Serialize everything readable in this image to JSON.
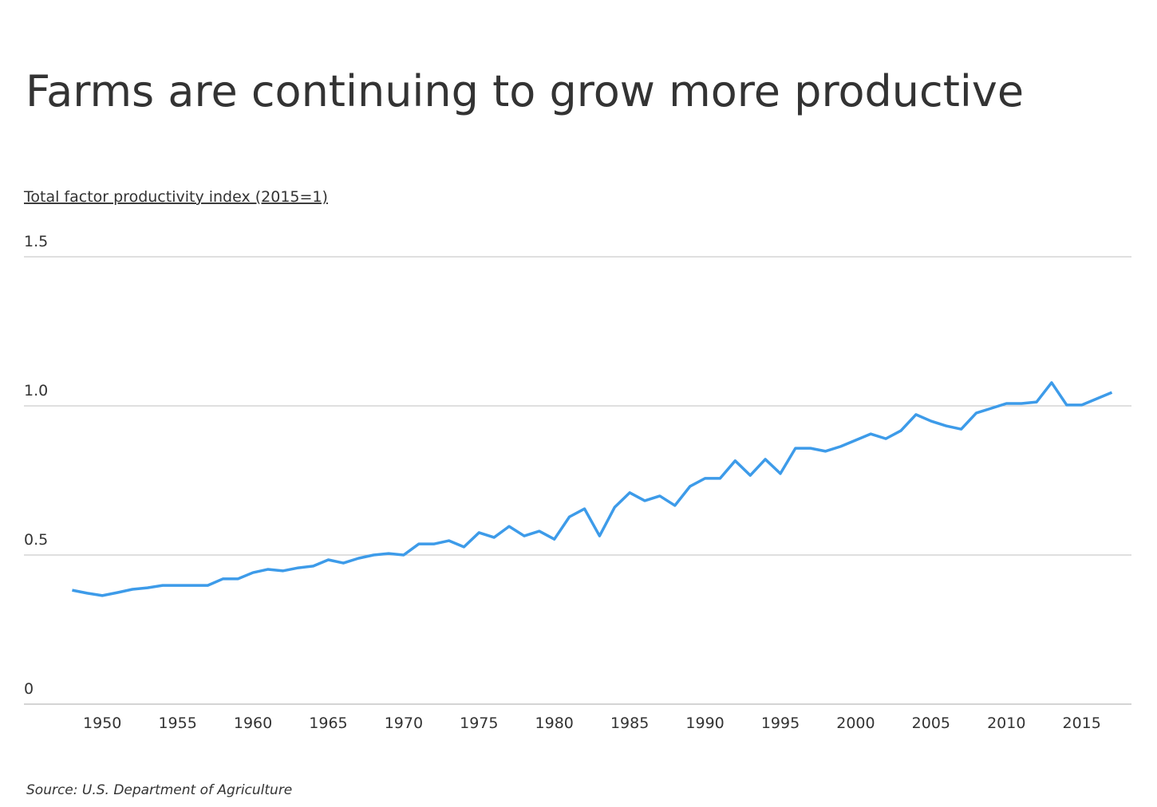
{
  "chart_data": {
    "type": "line",
    "title": "Farms are continuing to grow more productive",
    "y_axis_label": "Total factor productivity index (2015=1)",
    "source": "Source:  U.S. Department of Agriculture",
    "x": [
      1948,
      1949,
      1950,
      1951,
      1952,
      1953,
      1954,
      1955,
      1956,
      1957,
      1958,
      1959,
      1960,
      1961,
      1962,
      1963,
      1964,
      1965,
      1966,
      1967,
      1968,
      1969,
      1970,
      1971,
      1972,
      1973,
      1974,
      1975,
      1976,
      1977,
      1978,
      1979,
      1980,
      1981,
      1982,
      1983,
      1984,
      1985,
      1986,
      1987,
      1988,
      1989,
      1990,
      1991,
      1992,
      1993,
      1994,
      1995,
      1996,
      1997,
      1998,
      1999,
      2000,
      2001,
      2002,
      2003,
      2004,
      2005,
      2006,
      2007,
      2008,
      2009,
      2010,
      2011,
      2012,
      2013,
      2014,
      2015,
      2016,
      2017
    ],
    "series": [
      {
        "name": "Total factor productivity index",
        "color": "#3d9be9",
        "values": [
          0.382,
          0.372,
          0.364,
          0.374,
          0.385,
          0.39,
          0.398,
          0.398,
          0.398,
          0.398,
          0.42,
          0.42,
          0.441,
          0.452,
          0.447,
          0.457,
          0.463,
          0.484,
          0.473,
          0.489,
          0.5,
          0.505,
          0.5,
          0.537,
          0.537,
          0.548,
          0.527,
          0.575,
          0.559,
          0.596,
          0.564,
          0.58,
          0.553,
          0.628,
          0.655,
          0.564,
          0.66,
          0.709,
          0.682,
          0.698,
          0.666,
          0.73,
          0.757,
          0.757,
          0.816,
          0.767,
          0.821,
          0.773,
          0.858,
          0.858,
          0.848,
          0.864,
          0.885,
          0.906,
          0.89,
          0.917,
          0.971,
          0.949,
          0.933,
          0.922,
          0.976,
          0.992,
          1.008,
          1.008,
          1.013,
          1.078,
          1.003,
          1.003,
          1.024,
          1.045
        ]
      }
    ],
    "xlim": [
      1944.8,
      2018.3
    ],
    "xticks": [
      1950,
      1955,
      1960,
      1965,
      1970,
      1975,
      1980,
      1985,
      1990,
      1995,
      2000,
      2005,
      2010,
      2015
    ],
    "ylim": [
      0,
      1.5
    ],
    "yticks": [
      0,
      0.5,
      {
        "value": 1,
        "label": "1.0"
      },
      1.5
    ],
    "grid": true
  }
}
